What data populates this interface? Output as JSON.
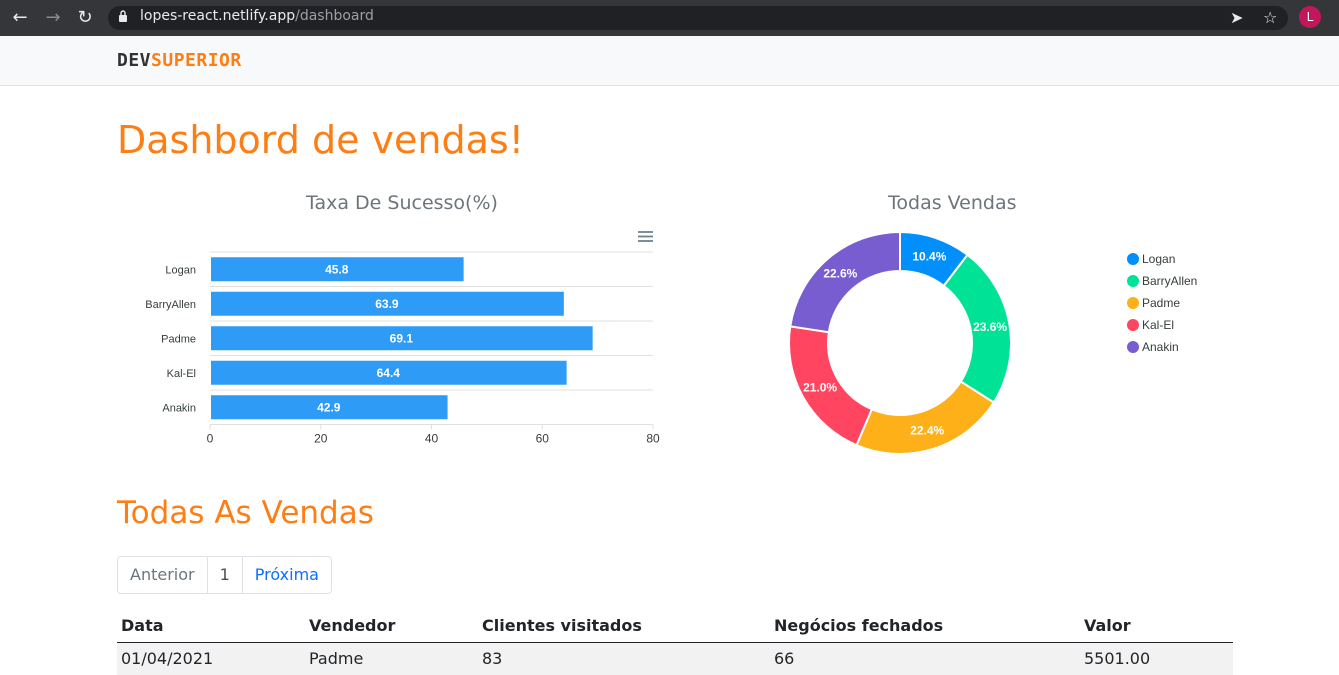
{
  "browser": {
    "url_host": "lopes-react.netlify.app",
    "url_path": "/dashboard",
    "avatar_letter": "L"
  },
  "navbar": {
    "logo_dev": "DEV",
    "logo_superior": "SUPERIOR"
  },
  "page": {
    "title": "Dashbord de vendas!",
    "section_title": "Todas As Vendas"
  },
  "colors": {
    "accent": "#fd7e14",
    "bar": "#2e9bf7",
    "link": "#0d6efd"
  },
  "chart_data": [
    {
      "type": "bar",
      "orientation": "horizontal",
      "title": "Taxa De Sucesso(%)",
      "categories": [
        "Logan",
        "BarryAllen",
        "Padme",
        "Kal-El",
        "Anakin"
      ],
      "values": [
        45.8,
        63.9,
        69.1,
        64.4,
        42.9
      ],
      "value_labels": [
        "45.8",
        "63.9",
        "69.1",
        "64.4",
        "42.9"
      ],
      "xlim": [
        0,
        80
      ],
      "xticks": [
        "0",
        "20",
        "40",
        "60",
        "80"
      ],
      "grid": true,
      "toolbar_icon": "menu-icon"
    },
    {
      "type": "pie",
      "variant": "donut",
      "title": "Todas Vendas",
      "labels": [
        "Logan",
        "BarryAllen",
        "Padme",
        "Kal-El",
        "Anakin"
      ],
      "values": [
        10.4,
        23.6,
        22.4,
        21.0,
        22.6
      ],
      "value_labels": [
        "10.4%",
        "23.6%",
        "22.4%",
        "21.0%",
        "22.6%"
      ],
      "colors": [
        "#008ffb",
        "#00e396",
        "#feb019",
        "#ff4560",
        "#775dd0"
      ],
      "legend": "right"
    }
  ],
  "pagination": {
    "previous": "Anterior",
    "current": "1",
    "next": "Próxima"
  },
  "table": {
    "headers": [
      "Data",
      "Vendedor",
      "Clientes visitados",
      "Negócios fechados",
      "Valor"
    ],
    "rows": [
      [
        "01/04/2021",
        "Padme",
        "83",
        "66",
        "5501.00"
      ]
    ]
  }
}
